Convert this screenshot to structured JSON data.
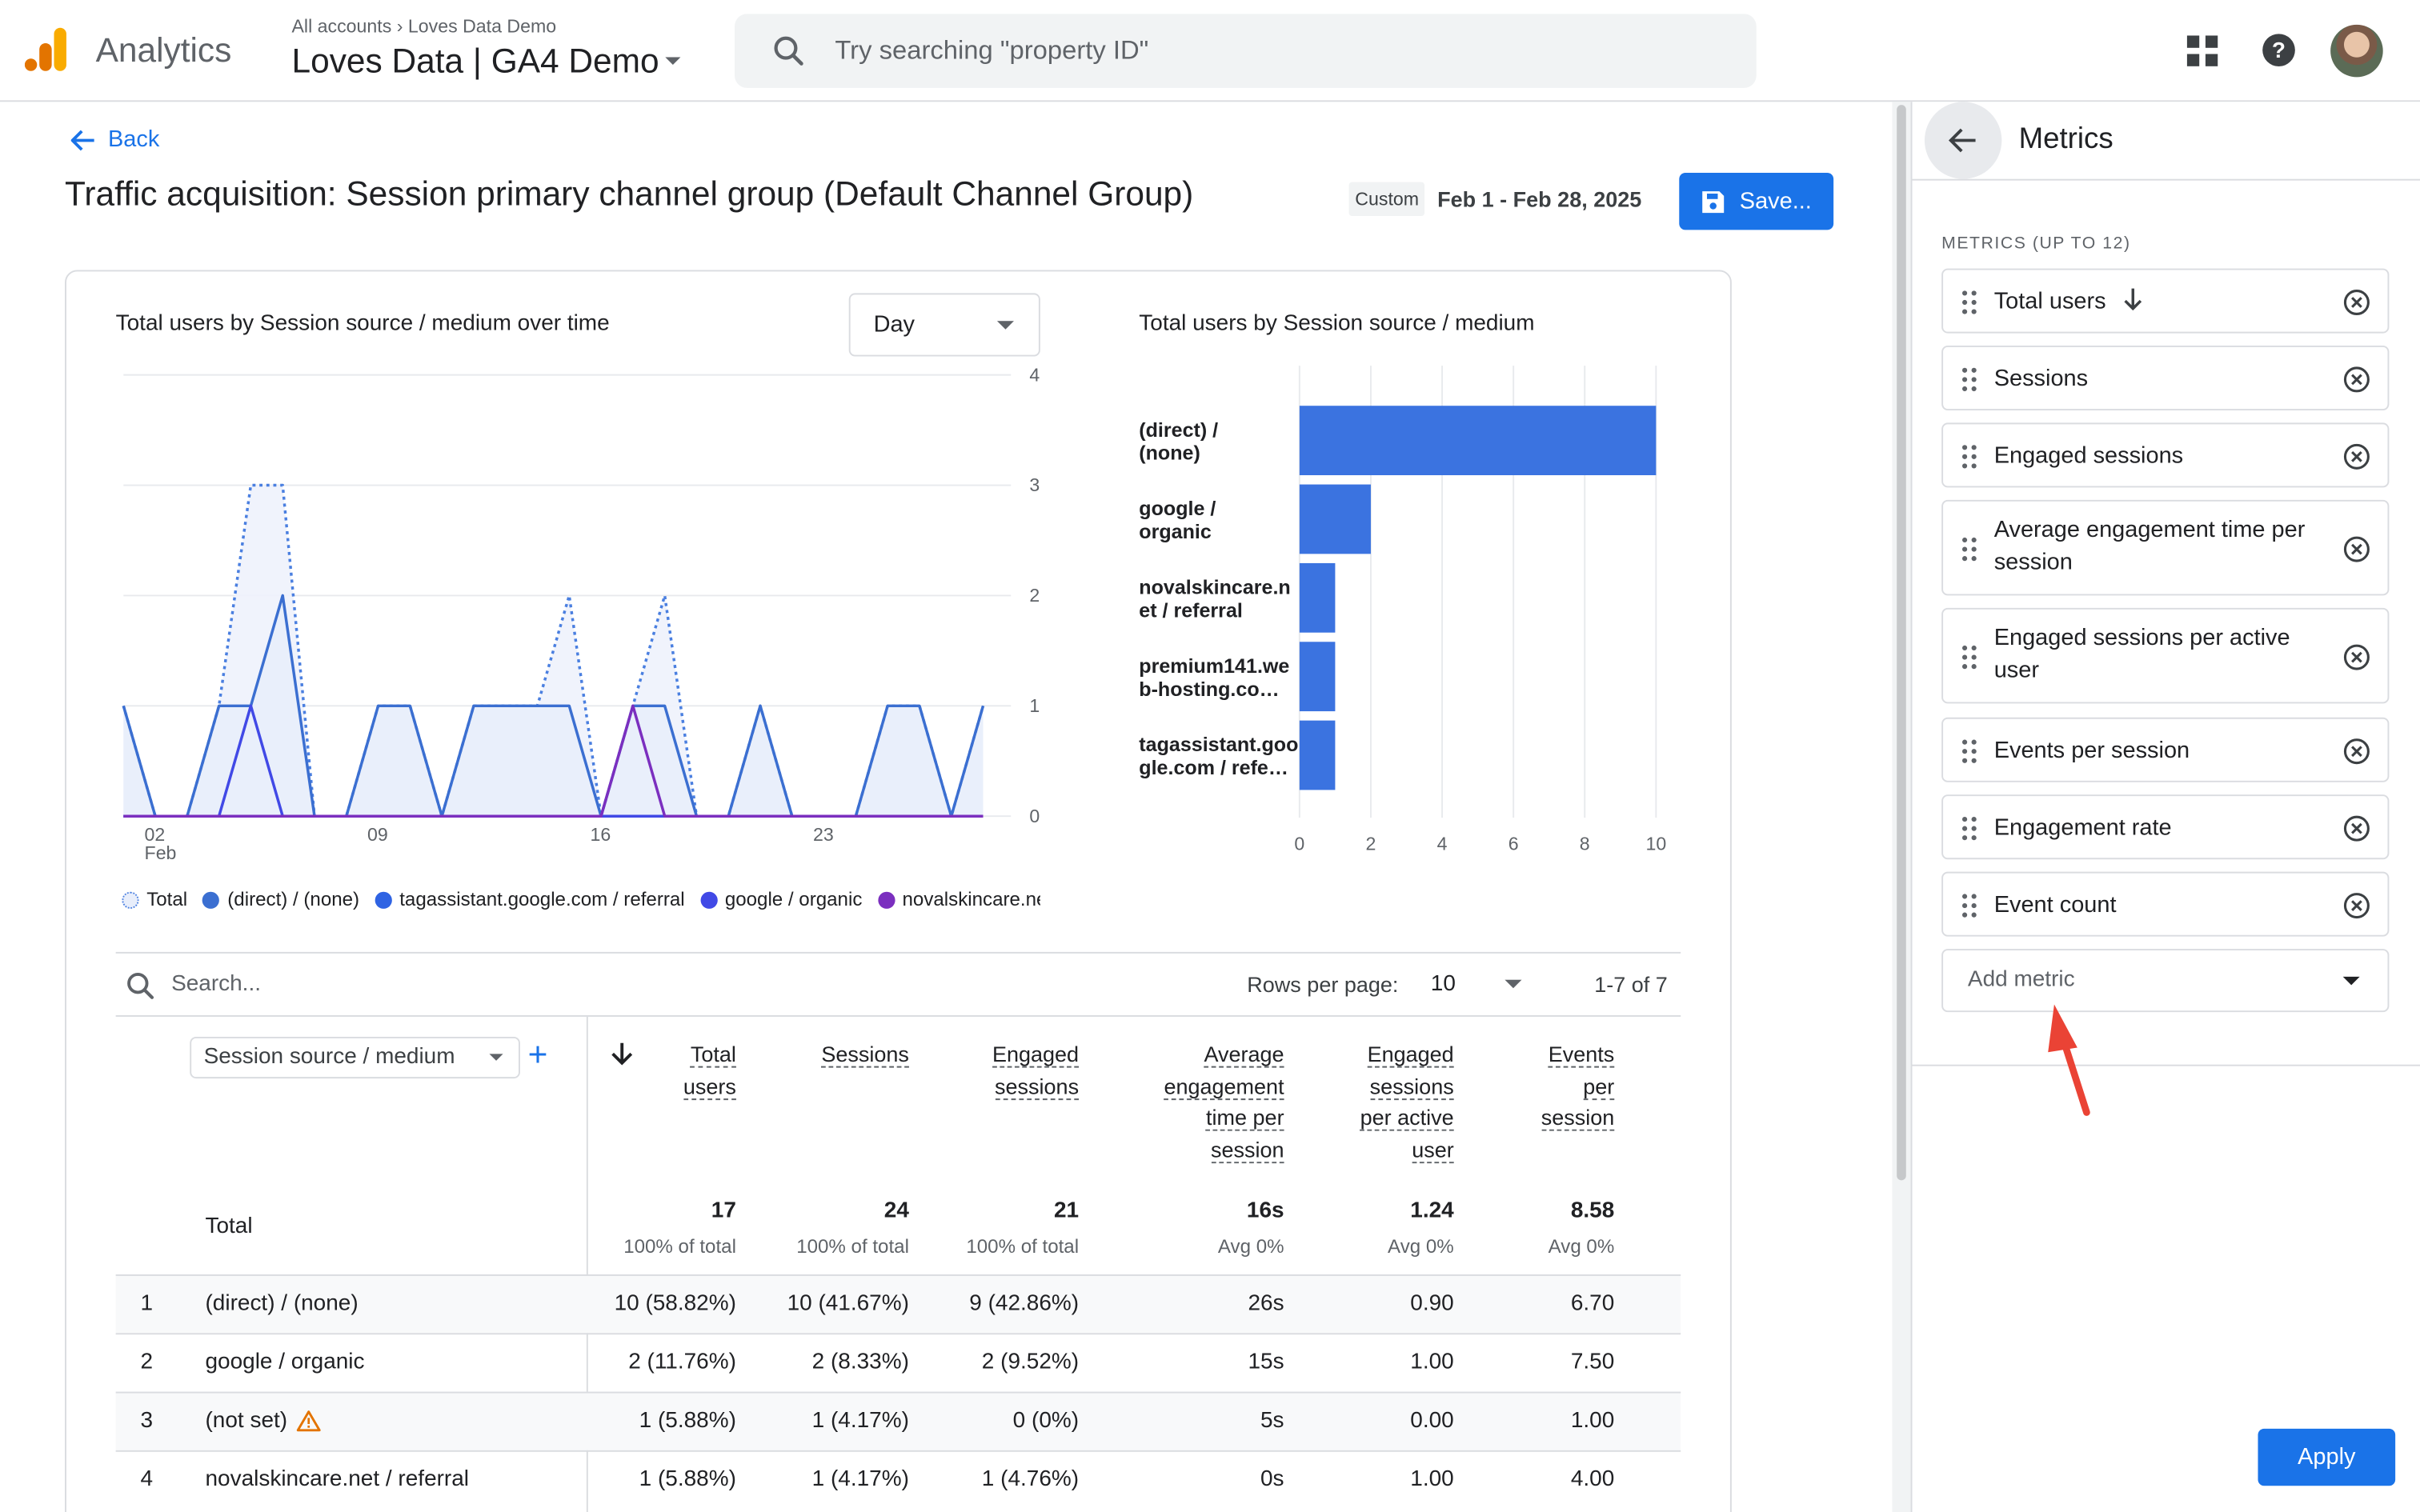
{
  "app": {
    "name": "Analytics"
  },
  "account": {
    "crumb_root": "All accounts",
    "crumb_account": "Loves Data Demo",
    "property": "Loves Data | GA4 Demo"
  },
  "search": {
    "placeholder": "Try searching \"property ID\""
  },
  "nav": {
    "back_label": "Back"
  },
  "page": {
    "title": "Traffic acquisition: Session primary channel group (Default Channel Group)"
  },
  "date_range": {
    "chip": "Custom",
    "text": "Feb 1 - Feb 28, 2025"
  },
  "toolbar": {
    "save_label": "Save..."
  },
  "line_chart": {
    "title": "Total users by Session source / medium over time",
    "granularity": "Day",
    "legend": [
      {
        "label": "Total",
        "color": "#4a7fe0"
      },
      {
        "label": "(direct) / (none)",
        "color": "#3b6fd1"
      },
      {
        "label": "tagassistant.google.com / referral",
        "color": "#2f63e3"
      },
      {
        "label": "google / organic",
        "color": "#4149e6"
      },
      {
        "label": "novalskincare.net / referral",
        "color": "#7b2fbf"
      }
    ]
  },
  "bar_chart": {
    "title": "Total users by Session source / medium"
  },
  "chart_data": [
    {
      "type": "line",
      "title": "Total users by Session source / medium over time",
      "x_ticks": [
        "02\nFeb",
        "09",
        "16",
        "23"
      ],
      "x": [
        1,
        2,
        3,
        4,
        5,
        6,
        7,
        8,
        9,
        10,
        11,
        12,
        13,
        14,
        15,
        16,
        17,
        18,
        19,
        20,
        21,
        22,
        23,
        24,
        25,
        26,
        27,
        28
      ],
      "ylim": [
        0,
        4
      ],
      "y_ticks": [
        0,
        1,
        2,
        3,
        4
      ],
      "series": [
        {
          "name": "Total",
          "style": "dotted",
          "values": [
            1,
            0,
            0,
            1,
            3,
            3,
            0,
            0,
            1,
            1,
            0,
            1,
            1,
            1,
            2,
            0,
            1,
            2,
            0,
            0,
            1,
            0,
            0,
            0,
            1,
            1,
            0,
            1
          ]
        },
        {
          "name": "(direct) / (none)",
          "values": [
            1,
            0,
            0,
            1,
            1,
            2,
            0,
            0,
            1,
            1,
            0,
            1,
            1,
            1,
            1,
            0,
            1,
            1,
            0,
            0,
            1,
            0,
            0,
            0,
            1,
            1,
            0,
            1
          ]
        },
        {
          "name": "tagassistant.google.com / referral",
          "values": [
            0,
            0,
            0,
            0,
            0,
            0,
            0,
            0,
            0,
            0,
            0,
            0,
            0,
            0,
            0,
            0,
            0,
            0,
            0,
            0,
            0,
            0,
            0,
            0,
            0,
            0,
            0,
            0
          ]
        },
        {
          "name": "google / organic",
          "values": [
            0,
            0,
            0,
            0,
            1,
            0,
            0,
            0,
            0,
            0,
            0,
            0,
            0,
            0,
            0,
            0,
            0,
            0,
            0,
            0,
            0,
            0,
            0,
            0,
            0,
            0,
            0,
            0
          ]
        },
        {
          "name": "novalskincare.net / referral",
          "values": [
            0,
            0,
            0,
            0,
            0,
            0,
            0,
            0,
            0,
            0,
            0,
            0,
            0,
            0,
            0,
            0,
            1,
            0,
            0,
            0,
            0,
            0,
            0,
            0,
            0,
            0,
            0,
            0
          ]
        }
      ]
    },
    {
      "type": "bar",
      "orientation": "horizontal",
      "title": "Total users by Session source / medium",
      "categories": [
        "(direct) / (none)",
        "google / organic",
        "novalskincare.net / referral",
        "premium141.web-hosting.co…",
        "tagassistant.google.com / refe…"
      ],
      "category_lines": [
        [
          "(direct) /",
          "(none)"
        ],
        [
          "google /",
          "organic"
        ],
        [
          "novalskincare.n",
          "et / referral"
        ],
        [
          "premium141.we",
          "b-hosting.co…"
        ],
        [
          "tagassistant.goo",
          "gle.com / refe…"
        ]
      ],
      "values": [
        10,
        2,
        1,
        1,
        1
      ],
      "xlim": [
        0,
        10
      ],
      "x_ticks": [
        0,
        2,
        4,
        6,
        8,
        10
      ],
      "color": "#3b73e0"
    }
  ],
  "table": {
    "search_placeholder": "Search...",
    "rows_per_page_label": "Rows per page:",
    "rows_per_page": "10",
    "pagination": "1-7 of 7",
    "dimension": "Session source / medium",
    "headers": [
      [
        "Total",
        "users"
      ],
      [
        "Sessions"
      ],
      [
        "Engaged",
        "sessions"
      ],
      [
        "Average",
        "engagement",
        "time per",
        "session"
      ],
      [
        "Engaged",
        "sessions",
        "per active",
        "user"
      ],
      [
        "Events",
        "per",
        "session"
      ]
    ],
    "total_label": "Total",
    "totals": [
      {
        "value": "17",
        "sub": "100% of total"
      },
      {
        "value": "24",
        "sub": "100% of total"
      },
      {
        "value": "21",
        "sub": "100% of total"
      },
      {
        "value": "16s",
        "sub": "Avg 0%"
      },
      {
        "value": "1.24",
        "sub": "Avg 0%"
      },
      {
        "value": "8.58",
        "sub": "Avg 0%"
      }
    ],
    "rows": [
      {
        "num": "1",
        "dim": "(direct) / (none)",
        "warn": false,
        "cells": [
          "10 (58.82%)",
          "10 (41.67%)",
          "9 (42.86%)",
          "26s",
          "0.90",
          "6.70"
        ]
      },
      {
        "num": "2",
        "dim": "google / organic",
        "warn": false,
        "cells": [
          "2 (11.76%)",
          "2 (8.33%)",
          "2 (9.52%)",
          "15s",
          "1.00",
          "7.50"
        ]
      },
      {
        "num": "3",
        "dim": "(not set)",
        "warn": true,
        "cells": [
          "1 (5.88%)",
          "1 (4.17%)",
          "0 (0%)",
          "5s",
          "0.00",
          "1.00"
        ]
      },
      {
        "num": "4",
        "dim": "novalskincare.net / referral",
        "warn": false,
        "cells": [
          "1 (5.88%)",
          "1 (4.17%)",
          "1 (4.76%)",
          "0s",
          "1.00",
          "4.00"
        ]
      }
    ]
  },
  "panel": {
    "title": "Metrics",
    "subtitle": "METRICS (UP TO 12)",
    "metrics": [
      {
        "label": "Total users",
        "sorted": true
      },
      {
        "label": "Sessions"
      },
      {
        "label": "Engaged sessions"
      },
      {
        "label": "Average engagement time per session"
      },
      {
        "label": "Engaged sessions per active user"
      },
      {
        "label": "Events per session"
      },
      {
        "label": "Engagement rate"
      },
      {
        "label": "Event count"
      }
    ],
    "add_metric_placeholder": "Add metric",
    "apply_label": "Apply"
  },
  "colors": {
    "accent": "#1a73e8",
    "annotation_arrow": "#ea4335",
    "warning": "#e37400"
  }
}
